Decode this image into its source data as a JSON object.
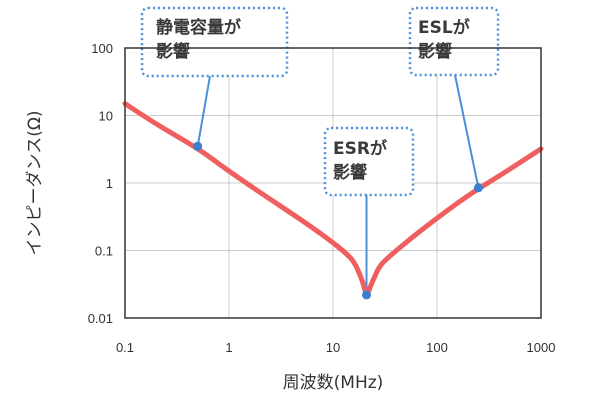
{
  "chart_data": {
    "type": "line",
    "title": "",
    "xlabel": "周波数(MHz)",
    "ylabel": "インピーダンス(Ω)",
    "xscale": "log",
    "yscale": "log",
    "xlim": [
      0.1,
      1000
    ],
    "ylim": [
      0.01,
      100
    ],
    "x_ticks": [
      {
        "value": 0.1,
        "label": "0.1"
      },
      {
        "value": 1,
        "label": "1"
      },
      {
        "value": 10,
        "label": "10"
      },
      {
        "value": 100,
        "label": "100"
      },
      {
        "value": 1000,
        "label": "1000"
      }
    ],
    "y_ticks": [
      {
        "value": 0.01,
        "label": "0.01"
      },
      {
        "value": 0.1,
        "label": "0.1"
      },
      {
        "value": 1,
        "label": "1"
      },
      {
        "value": 10,
        "label": "10"
      },
      {
        "value": 100,
        "label": "100"
      }
    ],
    "grid": true,
    "series": [
      {
        "color": "#ef5f5f",
        "x": [
          0.1,
          0.2,
          0.5,
          1,
          2,
          5,
          10,
          15,
          18,
          20,
          21,
          22,
          25,
          30,
          50,
          100,
          200,
          500,
          1000
        ],
        "y": [
          15,
          7.5,
          3.2,
          1.5,
          0.72,
          0.28,
          0.13,
          0.075,
          0.045,
          0.028,
          0.022,
          0.025,
          0.04,
          0.065,
          0.13,
          0.3,
          0.65,
          1.6,
          3.2
        ]
      }
    ],
    "annotations": [
      {
        "lines": [
          "静電容量が",
          "影響"
        ],
        "x": 0.5,
        "y": 3.5
      },
      {
        "lines": [
          "ESRが",
          "影響"
        ],
        "x": 21,
        "y": 0.022
      },
      {
        "lines": [
          "ESLが",
          "影響"
        ],
        "x": 250,
        "y": 0.85
      }
    ],
    "colors": {
      "line": "#ef5f5f",
      "dotted_box": "#4a90d9",
      "marker": "#3a7fd0",
      "grid": "#cccccc",
      "axis": "#333333"
    }
  }
}
